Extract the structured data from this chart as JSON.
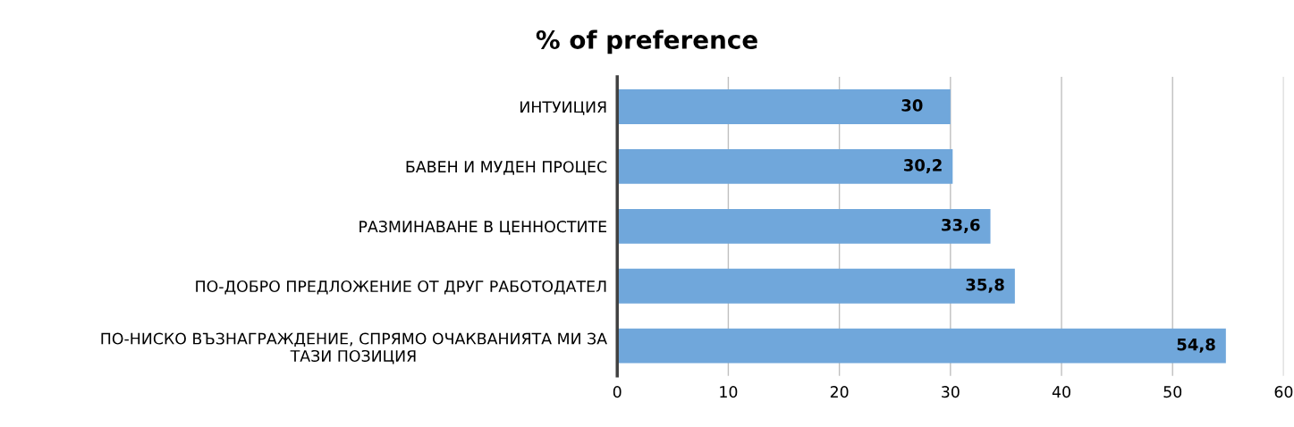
{
  "chart_data": {
    "type": "bar",
    "orientation": "horizontal",
    "title": "% of preference",
    "categories": [
      "ИНТУИЦИЯ",
      "БАВЕН И МУДЕН ПРОЦЕС",
      "РАЗМИНАВАНЕ В ЦЕННОСТИТЕ",
      "ПО-ДОБРО ПРЕДЛОЖЕНИЕ ОТ ДРУГ РАБОТОДАТЕЛ",
      "ПО-НИСКО ВЪЗНАГРАЖДЕНИЕ, СПРЯМО ОЧАКВАНИЯТА МИ ЗА ТАЗИ ПОЗИЦИЯ"
    ],
    "values": [
      30,
      30.2,
      33.6,
      35.8,
      54.8
    ],
    "value_labels": [
      "30",
      "30,2",
      "33,6",
      "35,8",
      "54,8"
    ],
    "color": "#70a7db",
    "xlim": [
      0,
      60
    ],
    "xticks": [
      0,
      10,
      20,
      30,
      40,
      50,
      60
    ],
    "grid": "x",
    "legend": false
  }
}
